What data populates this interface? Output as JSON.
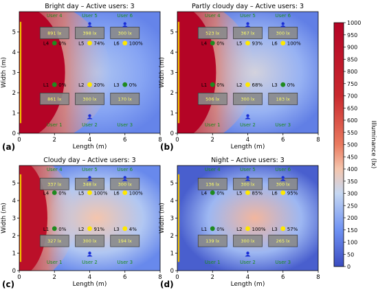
{
  "figure": {
    "colorbar": {
      "label": "Illuminance (lx)",
      "range": [
        0,
        1000
      ],
      "ticks": [
        0,
        50,
        100,
        150,
        200,
        250,
        300,
        350,
        400,
        450,
        500,
        550,
        600,
        650,
        700,
        750,
        800,
        850,
        900,
        950,
        1000
      ]
    }
  },
  "chart_data": [
    {
      "type": "heatmap",
      "panel_label": "(a)",
      "title": "Bright day – Active users: 3",
      "xlabel": "Length (m)",
      "ylabel": "Width (m)",
      "xlim": [
        0,
        8
      ],
      "ylim": [
        0,
        6
      ],
      "xticks": [
        0,
        2,
        4,
        6,
        8
      ],
      "yticks": [
        0,
        1,
        2,
        3,
        4,
        5
      ],
      "background_level": 120,
      "window_level": 1000,
      "daylight_reach": 2.6,
      "hotspot_level": 260,
      "window_line": true,
      "users": [
        {
          "label": "User 1",
          "x": 2,
          "y": 0.55,
          "present": false
        },
        {
          "label": "User 2",
          "x": 4,
          "y": 0.55,
          "present": true
        },
        {
          "label": "User 3",
          "x": 6,
          "y": 0.55,
          "present": false
        },
        {
          "label": "User 4",
          "x": 2,
          "y": 5.55,
          "present": false
        },
        {
          "label": "User 5",
          "x": 4,
          "y": 5.55,
          "present": true
        },
        {
          "label": "User 6",
          "x": 6,
          "y": 5.55,
          "present": true
        }
      ],
      "desks": [
        {
          "value": "861 lx",
          "x": 2,
          "y": 1.7
        },
        {
          "value": "300 lx",
          "x": 4,
          "y": 1.7
        },
        {
          "value": "170 lx",
          "x": 6,
          "y": 1.7
        },
        {
          "value": "891 lx",
          "x": 2,
          "y": 4.95
        },
        {
          "value": "398 lx",
          "x": 4,
          "y": 4.95
        },
        {
          "value": "300 lx",
          "x": 6,
          "y": 4.95
        }
      ],
      "lamps": [
        {
          "id": "L1",
          "dim": "0%",
          "x": 2,
          "y": 2.4,
          "on": false
        },
        {
          "id": "L2",
          "dim": "20%",
          "x": 4,
          "y": 2.4,
          "on": true
        },
        {
          "id": "L3",
          "dim": "0%",
          "x": 6,
          "y": 2.4,
          "on": false
        },
        {
          "id": "L4",
          "dim": "0%",
          "x": 2,
          "y": 4.45,
          "on": false
        },
        {
          "id": "L5",
          "dim": "74%",
          "x": 4,
          "y": 4.45,
          "on": true
        },
        {
          "id": "L6",
          "dim": "100%",
          "x": 6,
          "y": 4.45,
          "on": true
        }
      ]
    },
    {
      "type": "heatmap",
      "panel_label": "(b)",
      "title": "Partly cloudy day – Active users: 3",
      "xlabel": "Length (m)",
      "ylabel": "Width (m)",
      "xlim": [
        0,
        8
      ],
      "ylim": [
        0,
        6
      ],
      "xticks": [
        0,
        2,
        4,
        6,
        8
      ],
      "yticks": [
        0,
        1,
        2,
        3,
        4,
        5
      ],
      "background_level": 110,
      "window_level": 1000,
      "daylight_reach": 2.2,
      "hotspot_level": 330,
      "window_line": true,
      "users": [
        {
          "label": "User 1",
          "x": 2,
          "y": 0.55,
          "present": false
        },
        {
          "label": "User 2",
          "x": 4,
          "y": 0.55,
          "present": true
        },
        {
          "label": "User 3",
          "x": 6,
          "y": 0.55,
          "present": false
        },
        {
          "label": "User 4",
          "x": 2,
          "y": 5.55,
          "present": false
        },
        {
          "label": "User 5",
          "x": 4,
          "y": 5.55,
          "present": true
        },
        {
          "label": "User 6",
          "x": 6,
          "y": 5.55,
          "present": true
        }
      ],
      "desks": [
        {
          "value": "506 lx",
          "x": 2,
          "y": 1.7
        },
        {
          "value": "300 lx",
          "x": 4,
          "y": 1.7
        },
        {
          "value": "183 lx",
          "x": 6,
          "y": 1.7
        },
        {
          "value": "523 lx",
          "x": 2,
          "y": 4.95
        },
        {
          "value": "367 lx",
          "x": 4,
          "y": 4.95
        },
        {
          "value": "300 lx",
          "x": 6,
          "y": 4.95
        }
      ],
      "lamps": [
        {
          "id": "L1",
          "dim": "0%",
          "x": 2,
          "y": 2.4,
          "on": false
        },
        {
          "id": "L2",
          "dim": "68%",
          "x": 4,
          "y": 2.4,
          "on": true
        },
        {
          "id": "L3",
          "dim": "0%",
          "x": 6,
          "y": 2.4,
          "on": false
        },
        {
          "id": "L4",
          "dim": "0%",
          "x": 2,
          "y": 4.45,
          "on": false
        },
        {
          "id": "L5",
          "dim": "93%",
          "x": 4,
          "y": 4.45,
          "on": true
        },
        {
          "id": "L6",
          "dim": "100%",
          "x": 6,
          "y": 4.45,
          "on": true
        }
      ]
    },
    {
      "type": "heatmap",
      "panel_label": "(c)",
      "title": "Cloudy day – Active users: 3",
      "xlabel": "Length (m)",
      "ylabel": "Width (m)",
      "xlim": [
        0,
        8
      ],
      "ylim": [
        0,
        6
      ],
      "xticks": [
        0,
        2,
        4,
        6,
        8
      ],
      "yticks": [
        0,
        1,
        2,
        3,
        4,
        5
      ],
      "background_level": 130,
      "window_level": 900,
      "daylight_reach": 1.6,
      "hotspot_level": 400,
      "window_line": true,
      "users": [
        {
          "label": "User 1",
          "x": 2,
          "y": 0.55,
          "present": false
        },
        {
          "label": "User 2",
          "x": 4,
          "y": 0.55,
          "present": true
        },
        {
          "label": "User 3",
          "x": 6,
          "y": 0.55,
          "present": false
        },
        {
          "label": "User 4",
          "x": 2,
          "y": 5.55,
          "present": false
        },
        {
          "label": "User 5",
          "x": 4,
          "y": 5.55,
          "present": true
        },
        {
          "label": "User 6",
          "x": 6,
          "y": 5.55,
          "present": true
        }
      ],
      "desks": [
        {
          "value": "327 lx",
          "x": 2,
          "y": 1.7
        },
        {
          "value": "300 lx",
          "x": 4,
          "y": 1.7
        },
        {
          "value": "194 lx",
          "x": 6,
          "y": 1.7
        },
        {
          "value": "337 lx",
          "x": 2,
          "y": 4.95
        },
        {
          "value": "348 lx",
          "x": 4,
          "y": 4.95
        },
        {
          "value": "300 lx",
          "x": 6,
          "y": 4.95
        }
      ],
      "lamps": [
        {
          "id": "L1",
          "dim": "0%",
          "x": 2,
          "y": 2.4,
          "on": false
        },
        {
          "id": "L2",
          "dim": "91%",
          "x": 4,
          "y": 2.4,
          "on": true
        },
        {
          "id": "L3",
          "dim": "4%",
          "x": 6,
          "y": 2.4,
          "on": true
        },
        {
          "id": "L4",
          "dim": "0%",
          "x": 2,
          "y": 4.45,
          "on": false
        },
        {
          "id": "L5",
          "dim": "100%",
          "x": 4,
          "y": 4.45,
          "on": true
        },
        {
          "id": "L6",
          "dim": "100%",
          "x": 6,
          "y": 4.45,
          "on": true
        }
      ]
    },
    {
      "type": "heatmap",
      "panel_label": "(d)",
      "title": "Night – Active users: 3",
      "xlabel": "Length (m)",
      "ylabel": "Width (m)",
      "xlim": [
        0,
        8
      ],
      "ylim": [
        0,
        6
      ],
      "xticks": [
        0,
        2,
        4,
        6,
        8
      ],
      "yticks": [
        0,
        1,
        2,
        3,
        4,
        5
      ],
      "background_level": 40,
      "window_level": 0,
      "daylight_reach": 0,
      "hotspot_level": 420,
      "window_line": true,
      "users": [
        {
          "label": "User 1",
          "x": 2,
          "y": 0.55,
          "present": false
        },
        {
          "label": "User 2",
          "x": 4,
          "y": 0.55,
          "present": true
        },
        {
          "label": "User 3",
          "x": 6,
          "y": 0.55,
          "present": false
        },
        {
          "label": "User 4",
          "x": 2,
          "y": 5.55,
          "present": false
        },
        {
          "label": "User 5",
          "x": 4,
          "y": 5.55,
          "present": true
        },
        {
          "label": "User 6",
          "x": 6,
          "y": 5.55,
          "present": true
        }
      ],
      "desks": [
        {
          "value": "139 lx",
          "x": 2,
          "y": 1.7
        },
        {
          "value": "300 lx",
          "x": 4,
          "y": 1.7
        },
        {
          "value": "265 lx",
          "x": 6,
          "y": 1.7
        },
        {
          "value": "136 lx",
          "x": 2,
          "y": 4.95
        },
        {
          "value": "300 lx",
          "x": 4,
          "y": 4.95
        },
        {
          "value": "300 lx",
          "x": 6,
          "y": 4.95
        }
      ],
      "lamps": [
        {
          "id": "L1",
          "dim": "0%",
          "x": 2,
          "y": 2.4,
          "on": false
        },
        {
          "id": "L2",
          "dim": "100%",
          "x": 4,
          "y": 2.4,
          "on": true
        },
        {
          "id": "L3",
          "dim": "57%",
          "x": 6,
          "y": 2.4,
          "on": true
        },
        {
          "id": "L4",
          "dim": "0%",
          "x": 2,
          "y": 4.45,
          "on": false
        },
        {
          "id": "L5",
          "dim": "85%",
          "x": 4,
          "y": 4.45,
          "on": true
        },
        {
          "id": "L6",
          "dim": "95%",
          "x": 6,
          "y": 4.45,
          "on": true
        }
      ]
    }
  ],
  "colors": {
    "window": "#f2c200",
    "lamp_on": "#ffe800",
    "lamp_off": "#1f8a1f",
    "user": "#1a2fd6",
    "user_label": "#1a8a1a",
    "desk_fill": "#8a8a8a",
    "desk_text": "#ffff66"
  }
}
